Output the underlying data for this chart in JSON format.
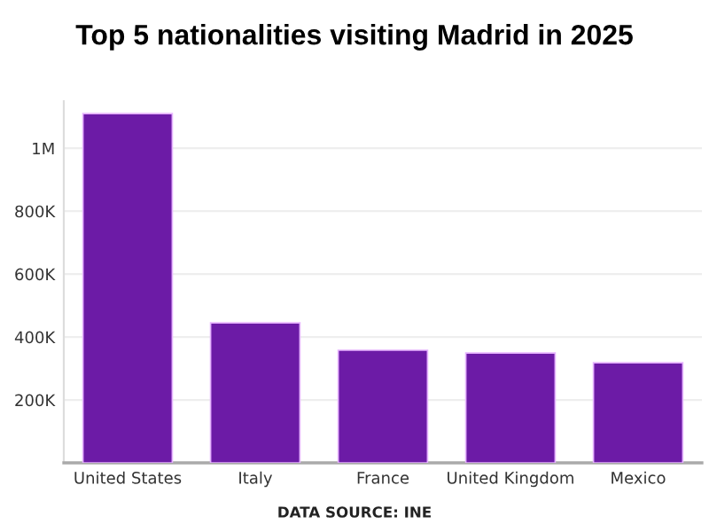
{
  "chart_data": {
    "type": "bar",
    "title": "Top 5 nationalities visiting Madrid in 2025",
    "categories": [
      "United States",
      "Italy",
      "France",
      "United Kingdom",
      "Mexico"
    ],
    "values": [
      1110000,
      445000,
      358000,
      349000,
      318000
    ],
    "color": "#6c1ba6",
    "ylim": [
      0,
      1150000
    ],
    "yticks": [
      {
        "value": 200000,
        "label": "200K"
      },
      {
        "value": 400000,
        "label": "400K"
      },
      {
        "value": 600000,
        "label": "600K"
      },
      {
        "value": 800000,
        "label": "800K"
      },
      {
        "value": 1000000,
        "label": "1M"
      }
    ],
    "grid": "y",
    "legend": false,
    "annotations": [
      "DATA SOURCE: INE"
    ]
  }
}
